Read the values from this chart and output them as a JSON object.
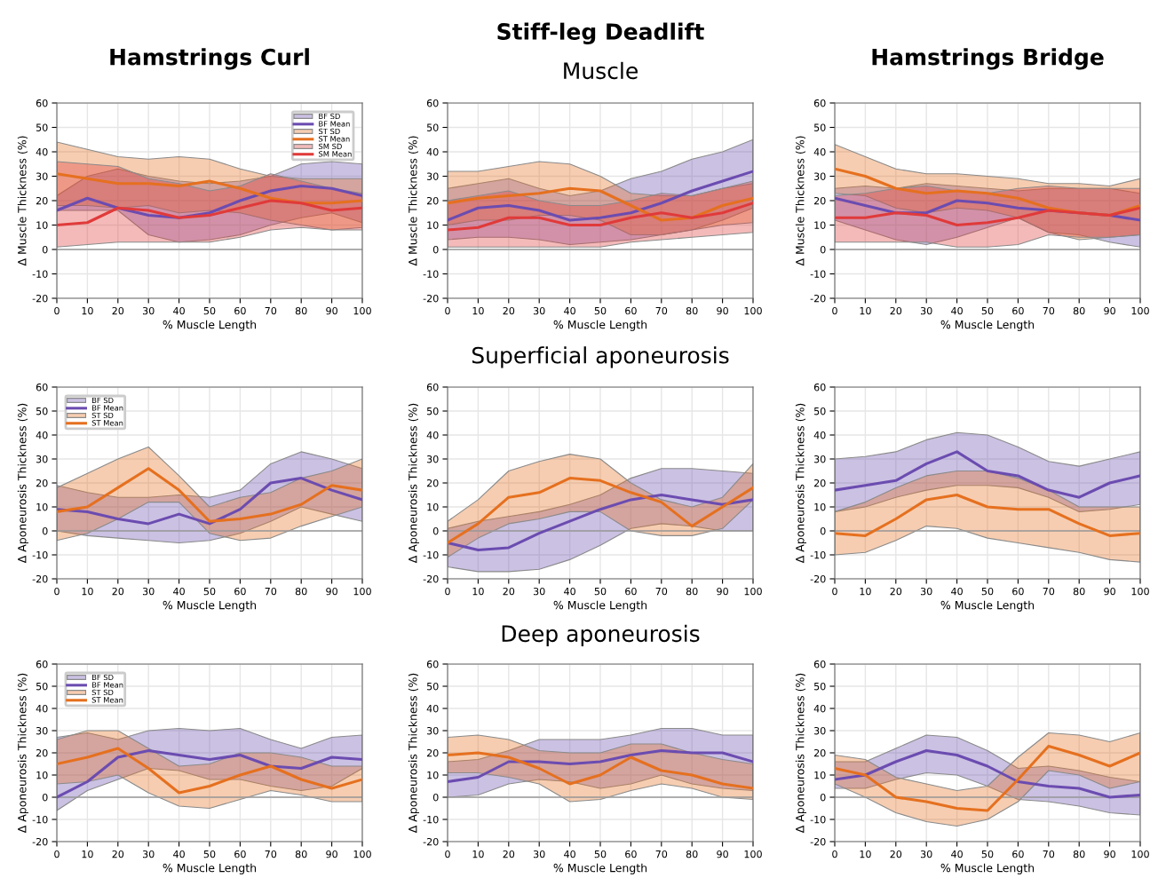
{
  "chart_data": [
    {
      "type": "line",
      "title": "Hamstrings Curl",
      "xlabel": "% Muscle Length",
      "ylabel": "Δ Muscle Thickness (%)",
      "x": [
        0,
        10,
        20,
        30,
        40,
        50,
        60,
        70,
        80,
        90,
        100
      ],
      "xlim": [
        0,
        100
      ],
      "ylim": [
        -20,
        60
      ],
      "xticks": [
        0,
        10,
        20,
        30,
        40,
        50,
        60,
        70,
        80,
        90,
        100
      ],
      "yticks": [
        -20,
        -10,
        0,
        10,
        20,
        30,
        40,
        50,
        60
      ],
      "grid": true,
      "legend": "top right",
      "annotations": [
        "BF SD",
        "ST SD",
        "SM SD"
      ],
      "ref_lines": [
        {
          "axis": "y",
          "value": 0,
          "color": "#9a9a9a"
        }
      ],
      "series": [
        {
          "name": "BF Mean",
          "color": "#6b4cb0",
          "values": [
            16,
            21,
            17,
            14,
            13,
            15,
            20,
            24,
            26,
            25,
            22
          ],
          "lower": [
            16,
            16,
            16,
            6,
            3,
            4,
            6,
            10,
            13,
            15,
            11
          ],
          "upper": [
            22,
            30,
            33,
            30,
            28,
            27,
            28,
            30,
            35,
            36,
            35
          ]
        },
        {
          "name": "ST Mean",
          "color": "#e5701f",
          "values": [
            31,
            29,
            27,
            27,
            26,
            28,
            25,
            21,
            19,
            19,
            20
          ],
          "lower": [
            18,
            18,
            17,
            18,
            15,
            16,
            15,
            12,
            10,
            8,
            9
          ],
          "upper": [
            44,
            41,
            38,
            37,
            38,
            37,
            33,
            30,
            29,
            29,
            29
          ]
        },
        {
          "name": "SM Mean",
          "color": "#e03a3a",
          "values": [
            10,
            11,
            17,
            16,
            13,
            14,
            17,
            20,
            19,
            16,
            17
          ],
          "lower": [
            1,
            2,
            3,
            3,
            3,
            3,
            5,
            8,
            9,
            8,
            8
          ],
          "upper": [
            36,
            35,
            34,
            29,
            27,
            24,
            26,
            31,
            28,
            25,
            23
          ]
        }
      ]
    },
    {
      "type": "line",
      "title": "Stiff-leg Deadlift",
      "subtitle": "Muscle",
      "xlabel": "% Muscle Length",
      "ylabel": "Δ Muscle Thickness (%)",
      "x": [
        0,
        10,
        20,
        30,
        40,
        50,
        60,
        70,
        80,
        90,
        100
      ],
      "xlim": [
        0,
        100
      ],
      "ylim": [
        -20,
        60
      ],
      "xticks": [
        0,
        10,
        20,
        30,
        40,
        50,
        60,
        70,
        80,
        90,
        100
      ],
      "yticks": [
        -20,
        -10,
        0,
        10,
        20,
        30,
        40,
        50,
        60
      ],
      "grid": true,
      "ref_lines": [
        {
          "axis": "y",
          "value": 0,
          "color": "#9a9a9a"
        }
      ],
      "series": [
        {
          "color": "#6b4cb0",
          "values": [
            12,
            17,
            18,
            16,
            12,
            13,
            15,
            19,
            24,
            28,
            32
          ],
          "lower": [
            4,
            5,
            5,
            4,
            2,
            3,
            4,
            6,
            8,
            12,
            17
          ],
          "upper": [
            25,
            27,
            29,
            25,
            22,
            24,
            29,
            32,
            37,
            40,
            45
          ]
        },
        {
          "color": "#e5701f",
          "values": [
            19,
            21,
            22,
            23,
            25,
            24,
            18,
            12,
            13,
            18,
            21
          ],
          "lower": [
            10,
            12,
            12,
            14,
            14,
            12,
            6,
            6,
            8,
            10,
            11
          ],
          "upper": [
            32,
            32,
            34,
            36,
            35,
            30,
            23,
            22,
            22,
            25,
            27
          ]
        },
        {
          "color": "#e03a3a",
          "values": [
            8,
            9,
            13,
            13,
            10,
            10,
            13,
            15,
            13,
            15,
            19
          ],
          "lower": [
            1,
            1,
            1,
            1,
            1,
            1,
            3,
            4,
            5,
            6,
            7
          ],
          "upper": [
            20,
            22,
            24,
            20,
            18,
            18,
            20,
            23,
            22,
            25,
            28
          ]
        }
      ]
    },
    {
      "type": "line",
      "title": "Hamstrings Bridge",
      "xlabel": "% Muscle Length",
      "ylabel": "Δ Muscle Thickness (%)",
      "x": [
        0,
        10,
        20,
        30,
        40,
        50,
        60,
        70,
        80,
        90,
        100
      ],
      "xlim": [
        0,
        100
      ],
      "ylim": [
        -20,
        60
      ],
      "xticks": [
        0,
        10,
        20,
        30,
        40,
        50,
        60,
        70,
        80,
        90,
        100
      ],
      "yticks": [
        -20,
        -10,
        0,
        10,
        20,
        30,
        40,
        50,
        60
      ],
      "grid": true,
      "ref_lines": [
        {
          "axis": "y",
          "value": 0,
          "color": "#9a9a9a"
        }
      ],
      "series": [
        {
          "color": "#6b4cb0",
          "values": [
            21,
            18,
            15,
            15,
            20,
            19,
            17,
            16,
            15,
            14,
            12
          ],
          "lower": [
            12,
            8,
            4,
            2,
            5,
            9,
            13,
            7,
            6,
            3,
            1
          ],
          "upper": [
            25,
            26,
            25,
            27,
            26,
            25,
            24,
            25,
            25,
            25,
            23
          ]
        },
        {
          "color": "#e5701f",
          "values": [
            33,
            30,
            25,
            23,
            24,
            23,
            21,
            17,
            15,
            14,
            18
          ],
          "lower": [
            23,
            22,
            17,
            15,
            17,
            16,
            13,
            7,
            4,
            5,
            6
          ],
          "upper": [
            43,
            38,
            33,
            31,
            31,
            30,
            29,
            27,
            27,
            26,
            29
          ]
        },
        {
          "color": "#e03a3a",
          "values": [
            13,
            13,
            15,
            14,
            10,
            11,
            13,
            16,
            15,
            14,
            17
          ],
          "lower": [
            3,
            3,
            3,
            3,
            1,
            1,
            2,
            6,
            5,
            5,
            6
          ],
          "upper": [
            22,
            23,
            25,
            26,
            24,
            23,
            25,
            26,
            25,
            25,
            25
          ]
        }
      ]
    },
    {
      "type": "line",
      "xlabel": "% Muscle Length",
      "ylabel": "Δ Aponeurosis Thickness (%)",
      "x": [
        0,
        10,
        20,
        30,
        40,
        50,
        60,
        70,
        80,
        90,
        100
      ],
      "xlim": [
        0,
        100
      ],
      "ylim": [
        -20,
        60
      ],
      "xticks": [
        0,
        10,
        20,
        30,
        40,
        50,
        60,
        70,
        80,
        90,
        100
      ],
      "yticks": [
        -20,
        -10,
        0,
        10,
        20,
        30,
        40,
        50,
        60
      ],
      "grid": true,
      "legend": "top left",
      "annotations": [
        "BF SD",
        "ST SD"
      ],
      "ref_lines": [
        {
          "axis": "y",
          "value": 0,
          "color": "#9a9a9a"
        }
      ],
      "series": [
        {
          "name": "BF Mean",
          "color": "#6b4cb0",
          "values": [
            9,
            8,
            5,
            3,
            7,
            3,
            9,
            20,
            22,
            17,
            13
          ],
          "lower": [
            0,
            -2,
            -3,
            -4,
            -5,
            -4,
            -1,
            4,
            10,
            7,
            4
          ],
          "upper": [
            19,
            16,
            14,
            14,
            15,
            14,
            17,
            28,
            33,
            30,
            26
          ]
        },
        {
          "name": "ST Mean",
          "color": "#e5701f",
          "values": [
            8,
            10,
            18,
            26,
            17,
            4,
            5,
            7,
            11,
            19,
            17
          ],
          "lower": [
            -4,
            -1,
            5,
            12,
            12,
            -1,
            -4,
            -3,
            2,
            6,
            10
          ],
          "upper": [
            18,
            24,
            30,
            35,
            23,
            10,
            14,
            16,
            22,
            25,
            30
          ]
        }
      ]
    },
    {
      "type": "line",
      "subtitle": "Superficial aponeurosis",
      "xlabel": "% Muscle Length",
      "ylabel": "Δ Aponeurosis Thickness (%)",
      "x": [
        0,
        10,
        20,
        30,
        40,
        50,
        60,
        70,
        80,
        90,
        100
      ],
      "xlim": [
        0,
        100
      ],
      "ylim": [
        -20,
        60
      ],
      "xticks": [
        0,
        10,
        20,
        30,
        40,
        50,
        60,
        70,
        80,
        90,
        100
      ],
      "yticks": [
        -20,
        -10,
        0,
        10,
        20,
        30,
        40,
        50,
        60
      ],
      "grid": true,
      "ref_lines": [
        {
          "axis": "y",
          "value": 0,
          "color": "#9a9a9a"
        }
      ],
      "series": [
        {
          "color": "#6b4cb0",
          "values": [
            -5,
            -8,
            -7,
            -1,
            4,
            9,
            13,
            15,
            13,
            11,
            13
          ],
          "lower": [
            -15,
            -17,
            -17,
            -16,
            -12,
            -6,
            1,
            3,
            2,
            0,
            0
          ],
          "upper": [
            1,
            4,
            6,
            8,
            11,
            15,
            22,
            26,
            26,
            25,
            24
          ]
        },
        {
          "color": "#e5701f",
          "values": [
            -5,
            3,
            14,
            16,
            22,
            21,
            16,
            12,
            2,
            10,
            18
          ],
          "lower": [
            -11,
            -3,
            3,
            5,
            8,
            8,
            0,
            -2,
            -2,
            1,
            13
          ],
          "upper": [
            4,
            13,
            25,
            29,
            32,
            30,
            20,
            13,
            10,
            14,
            28
          ]
        }
      ]
    },
    {
      "type": "line",
      "xlabel": "% Muscle Length",
      "ylabel": "Δ Aponeurosis Thickness (%)",
      "x": [
        0,
        10,
        20,
        30,
        40,
        50,
        60,
        70,
        80,
        90,
        100
      ],
      "xlim": [
        0,
        100
      ],
      "ylim": [
        -20,
        60
      ],
      "xticks": [
        0,
        10,
        20,
        30,
        40,
        50,
        60,
        70,
        80,
        90,
        100
      ],
      "yticks": [
        -20,
        -10,
        0,
        10,
        20,
        30,
        40,
        50,
        60
      ],
      "grid": true,
      "ref_lines": [
        {
          "axis": "y",
          "value": 0,
          "color": "#9a9a9a"
        }
      ],
      "series": [
        {
          "color": "#6b4cb0",
          "values": [
            17,
            19,
            21,
            28,
            33,
            25,
            23,
            17,
            14,
            20,
            23
          ],
          "lower": [
            8,
            10,
            14,
            17,
            19,
            19,
            18,
            14,
            8,
            9,
            11
          ],
          "upper": [
            30,
            31,
            33,
            38,
            41,
            40,
            35,
            29,
            27,
            30,
            33
          ]
        },
        {
          "color": "#e5701f",
          "values": [
            -1,
            -2,
            5,
            13,
            15,
            10,
            9,
            9,
            3,
            -2,
            -1
          ],
          "lower": [
            -10,
            -9,
            -4,
            2,
            1,
            -3,
            -5,
            -7,
            -9,
            -12,
            -13
          ],
          "upper": [
            8,
            12,
            18,
            23,
            25,
            25,
            22,
            17,
            10,
            10,
            10
          ]
        }
      ]
    },
    {
      "type": "line",
      "xlabel": "% Muscle Length",
      "ylabel": "Δ Aponeurosis Thickness (%)",
      "x": [
        0,
        10,
        20,
        30,
        40,
        50,
        60,
        70,
        80,
        90,
        100
      ],
      "xlim": [
        0,
        100
      ],
      "ylim": [
        -20,
        60
      ],
      "xticks": [
        0,
        10,
        20,
        30,
        40,
        50,
        60,
        70,
        80,
        90,
        100
      ],
      "yticks": [
        -20,
        -10,
        0,
        10,
        20,
        30,
        40,
        50,
        60
      ],
      "grid": true,
      "legend": "top left",
      "annotations": [
        "BF SD",
        "ST SD"
      ],
      "ref_lines": [
        {
          "axis": "y",
          "value": 0,
          "color": "#9a9a9a"
        }
      ],
      "series": [
        {
          "name": "BF Mean",
          "color": "#6b4cb0",
          "values": [
            0,
            7,
            18,
            21,
            19,
            17,
            19,
            14,
            13,
            18,
            17
          ],
          "lower": [
            -6,
            3,
            8,
            13,
            12,
            8,
            8,
            5,
            3,
            5,
            13
          ],
          "upper": [
            27,
            29,
            26,
            30,
            31,
            30,
            31,
            26,
            22,
            27,
            28
          ]
        },
        {
          "name": "ST Mean",
          "color": "#e5701f",
          "values": [
            15,
            18,
            22,
            13,
            2,
            5,
            10,
            14,
            8,
            4,
            8
          ],
          "lower": [
            6,
            7,
            10,
            2,
            -4,
            -5,
            -1,
            3,
            1,
            -2,
            -2
          ],
          "upper": [
            26,
            30,
            30,
            22,
            14,
            15,
            20,
            20,
            18,
            14,
            14
          ]
        }
      ]
    },
    {
      "type": "line",
      "subtitle": "Deep aponeurosis",
      "xlabel": "% Muscle Length",
      "ylabel": "Δ Aponeurosis Thickness (%)",
      "x": [
        0,
        10,
        20,
        30,
        40,
        50,
        60,
        70,
        80,
        90,
        100
      ],
      "xlim": [
        0,
        100
      ],
      "ylim": [
        -20,
        60
      ],
      "xticks": [
        0,
        10,
        20,
        30,
        40,
        50,
        60,
        70,
        80,
        90,
        100
      ],
      "yticks": [
        -20,
        -10,
        0,
        10,
        20,
        30,
        40,
        50,
        60
      ],
      "grid": true,
      "ref_lines": [
        {
          "axis": "y",
          "value": 0,
          "color": "#9a9a9a"
        }
      ],
      "series": [
        {
          "color": "#6b4cb0",
          "values": [
            7,
            9,
            16,
            16,
            15,
            16,
            19,
            21,
            20,
            20,
            16
          ],
          "lower": [
            0,
            1,
            6,
            8,
            7,
            4,
            6,
            10,
            6,
            4,
            3
          ],
          "upper": [
            16,
            17,
            21,
            26,
            26,
            26,
            28,
            31,
            31,
            28,
            28
          ]
        },
        {
          "color": "#e5701f",
          "values": [
            19,
            20,
            18,
            13,
            6,
            10,
            18,
            12,
            10,
            6,
            4
          ],
          "lower": [
            11,
            11,
            9,
            6,
            -2,
            -1,
            3,
            6,
            4,
            0,
            -1
          ],
          "upper": [
            27,
            28,
            26,
            21,
            20,
            20,
            24,
            24,
            20,
            17,
            15
          ]
        }
      ]
    },
    {
      "type": "line",
      "xlabel": "% Muscle Length",
      "ylabel": "Δ Aponeurosis Thickness (%)",
      "x": [
        0,
        10,
        20,
        30,
        40,
        50,
        60,
        70,
        80,
        90,
        100
      ],
      "xlim": [
        0,
        100
      ],
      "ylim": [
        -20,
        60
      ],
      "xticks": [
        0,
        10,
        20,
        30,
        40,
        50,
        60,
        70,
        80,
        90,
        100
      ],
      "yticks": [
        -20,
        -10,
        0,
        10,
        20,
        30,
        40,
        50,
        60
      ],
      "grid": true,
      "ref_lines": [
        {
          "axis": "y",
          "value": 0,
          "color": "#9a9a9a"
        }
      ],
      "series": [
        {
          "color": "#6b4cb0",
          "values": [
            8,
            10,
            16,
            21,
            19,
            14,
            7,
            5,
            4,
            0,
            1
          ],
          "lower": [
            4,
            4,
            8,
            11,
            10,
            5,
            -1,
            -2,
            -4,
            -7,
            -8
          ],
          "upper": [
            16,
            16,
            22,
            28,
            27,
            21,
            13,
            14,
            12,
            9,
            7
          ]
        },
        {
          "color": "#e5701f",
          "values": [
            13,
            10,
            0,
            -2,
            -5,
            -6,
            8,
            23,
            19,
            14,
            20
          ],
          "lower": [
            6,
            0,
            -7,
            -11,
            -13,
            -10,
            -2,
            12,
            10,
            4,
            7
          ],
          "upper": [
            19,
            17,
            9,
            6,
            3,
            5,
            18,
            29,
            28,
            25,
            29
          ]
        }
      ]
    }
  ]
}
